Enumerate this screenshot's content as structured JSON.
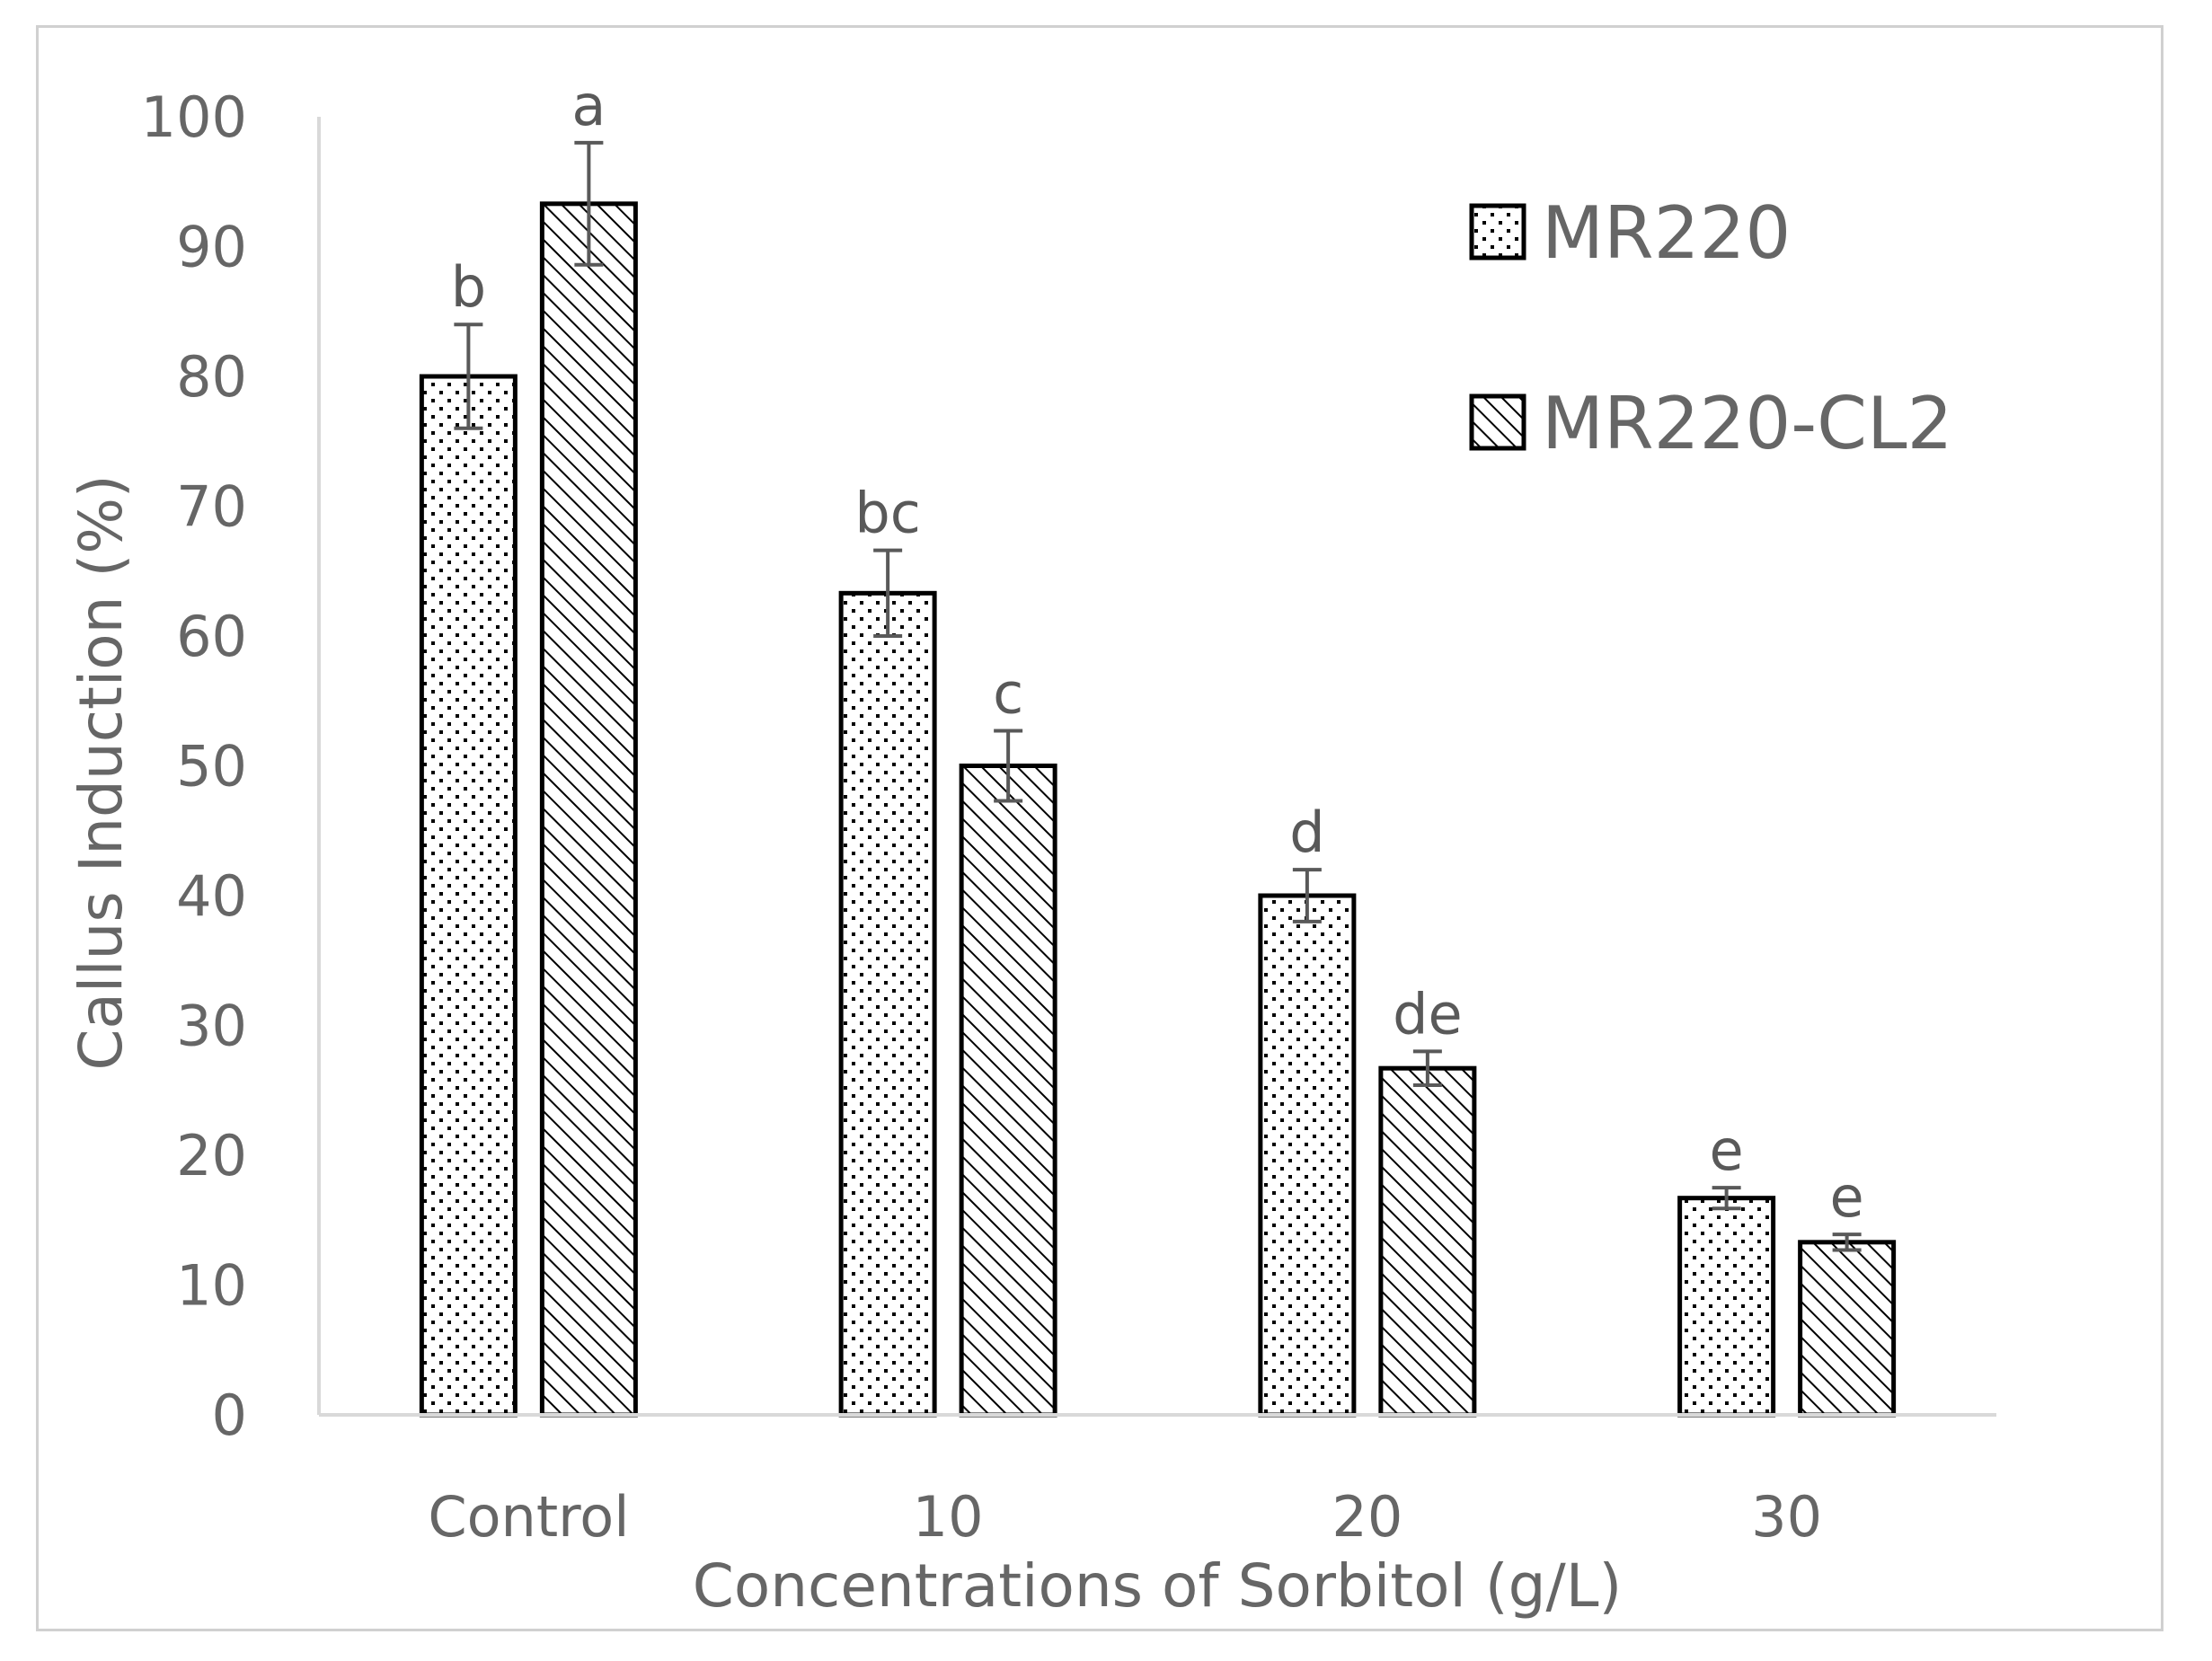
{
  "chart_data": {
    "type": "bar",
    "title": "",
    "xlabel": "Concentrations of Sorbitol (g/L)",
    "ylabel": "Callus Induction (%)",
    "ylim": [
      0,
      100
    ],
    "yticks": [
      0,
      10,
      20,
      30,
      40,
      50,
      60,
      70,
      80,
      90,
      100
    ],
    "grid": false,
    "legend_position": "top-right",
    "categories": [
      "Control",
      "10",
      "20",
      "30"
    ],
    "series": [
      {
        "name": "MR220",
        "pattern": "dots",
        "values": [
          80,
          63.3,
          40,
          16.7
        ],
        "errors": [
          4,
          3.3,
          2,
          0.8
        ],
        "labels": [
          "b",
          "bc",
          "d",
          "e"
        ]
      },
      {
        "name": "MR220-CL2",
        "pattern": "hatch",
        "values": [
          93.3,
          50,
          26.7,
          13.3
        ],
        "errors": [
          4.7,
          2.7,
          1.3,
          0.6
        ],
        "labels": [
          "a",
          "c",
          "de",
          "e"
        ]
      }
    ],
    "colors": {
      "bar_stroke": "#000000",
      "error_bar": "#595959",
      "axis": "#d9d9d9",
      "text": "#666666"
    }
  }
}
